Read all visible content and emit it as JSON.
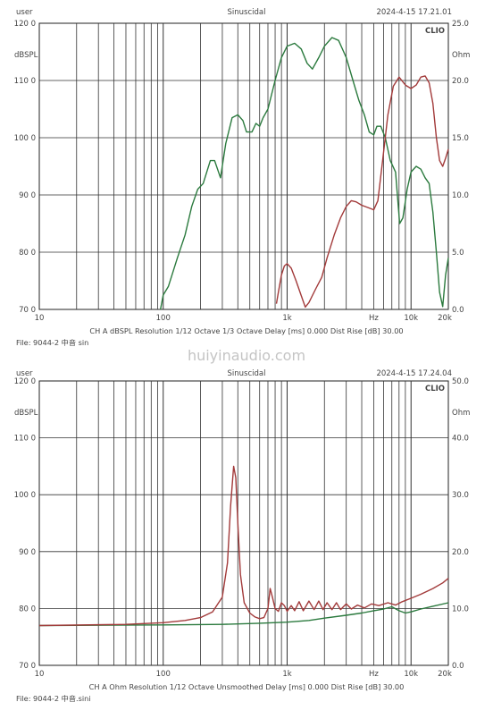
{
  "watermark": "huiyinaudio.com",
  "chart_data": [
    {
      "type": "line",
      "header": {
        "left": "user",
        "center": "Sinuscidal",
        "right": "2024-4-15 17.21.01"
      },
      "brand": "CLIO",
      "ylabel_left": "dBSPL",
      "ylabel_right": "Ohm",
      "xlim": [
        10,
        20000
      ],
      "ylim_left": [
        70,
        120
      ],
      "ylim_right": [
        0,
        25
      ],
      "x_scale": "log",
      "grid": true,
      "x_ticks": [
        {
          "value": 10,
          "label": "10"
        },
        {
          "value": 100,
          "label": "100"
        },
        {
          "value": 1000,
          "label": "1k"
        },
        {
          "value": 5000,
          "label": "Hz"
        },
        {
          "value": 10000,
          "label": "10k"
        },
        {
          "value": 20000,
          "label": "20k"
        }
      ],
      "y_ticks_left": [
        "70 0",
        "80 0",
        "90 0",
        "100 0",
        "110 0",
        "120 0"
      ],
      "y_ticks_right": [
        "0.0",
        "5.0",
        "10.0",
        "15.0",
        "20.0",
        "25.0"
      ],
      "info": "CH A   dBSPL   Resolution 1/12 Octave   1/3 Octave   Delay [ms] 0.000   Dist Rise [dB] 30.00",
      "file": "File: 9044-2  中音 sin",
      "series": [
        {
          "axis": "left",
          "color": "#2b7a3e",
          "points": [
            [
              95,
              70
            ],
            [
              100,
              72.5
            ],
            [
              110,
              74
            ],
            [
              130,
              79
            ],
            [
              150,
              83
            ],
            [
              170,
              88
            ],
            [
              190,
              91
            ],
            [
              210,
              92
            ],
            [
              240,
              96
            ],
            [
              260,
              96
            ],
            [
              290,
              93
            ],
            [
              320,
              99
            ],
            [
              360,
              103.5
            ],
            [
              400,
              104
            ],
            [
              440,
              103
            ],
            [
              470,
              101
            ],
            [
              520,
              101
            ],
            [
              560,
              102.5
            ],
            [
              600,
              102
            ],
            [
              640,
              103.5
            ],
            [
              700,
              105
            ],
            [
              800,
              110
            ],
            [
              900,
              114
            ],
            [
              1000,
              116
            ],
            [
              1150,
              116.5
            ],
            [
              1300,
              115.5
            ],
            [
              1450,
              113
            ],
            [
              1600,
              112
            ],
            [
              1800,
              114
            ],
            [
              2000,
              116
            ],
            [
              2300,
              117.5
            ],
            [
              2600,
              117
            ],
            [
              3000,
              114
            ],
            [
              3400,
              110
            ],
            [
              3800,
              106.5
            ],
            [
              4200,
              104
            ],
            [
              4600,
              101
            ],
            [
              5000,
              100.5
            ],
            [
              5300,
              102
            ],
            [
              5700,
              102
            ],
            [
              6200,
              100
            ],
            [
              6800,
              96
            ],
            [
              7500,
              94
            ],
            [
              8100,
              85
            ],
            [
              8600,
              86
            ],
            [
              9300,
              91
            ],
            [
              10000,
              94
            ],
            [
              11000,
              95
            ],
            [
              12000,
              94.5
            ],
            [
              13000,
              93
            ],
            [
              14000,
              92
            ],
            [
              15000,
              87
            ],
            [
              16000,
              80
            ],
            [
              17000,
              73
            ],
            [
              18000,
              70.5
            ],
            [
              19000,
              76
            ],
            [
              20000,
              79
            ]
          ]
        },
        {
          "axis": "right",
          "color": "#a23a3a",
          "points": [
            [
              820,
              0.5
            ],
            [
              850,
              1.5
            ],
            [
              900,
              3
            ],
            [
              950,
              3.8
            ],
            [
              1000,
              4.0
            ],
            [
              1080,
              3.6
            ],
            [
              1180,
              2.5
            ],
            [
              1300,
              1.2
            ],
            [
              1400,
              0.2
            ],
            [
              1500,
              0.6
            ],
            [
              1700,
              1.8
            ],
            [
              1900,
              2.8
            ],
            [
              2100,
              4.5
            ],
            [
              2400,
              6.5
            ],
            [
              2700,
              8.0
            ],
            [
              3000,
              9.0
            ],
            [
              3300,
              9.5
            ],
            [
              3600,
              9.4
            ],
            [
              4000,
              9.1
            ],
            [
              4500,
              8.9
            ],
            [
              5000,
              8.7
            ],
            [
              5400,
              9.5
            ],
            [
              5900,
              13
            ],
            [
              6500,
              17
            ],
            [
              7200,
              19.5
            ],
            [
              8000,
              20.3
            ],
            [
              9000,
              19.6
            ],
            [
              10000,
              19.3
            ],
            [
              11000,
              19.6
            ],
            [
              12000,
              20.3
            ],
            [
              13000,
              20.4
            ],
            [
              14000,
              19.8
            ],
            [
              15000,
              18
            ],
            [
              16000,
              15
            ],
            [
              17000,
              13
            ],
            [
              18000,
              12.5
            ],
            [
              19000,
              13.2
            ],
            [
              20000,
              14
            ]
          ]
        }
      ]
    },
    {
      "type": "line",
      "header": {
        "left": "user",
        "center": "Sinuscidal",
        "right": "2024-4-15 17.24.04"
      },
      "brand": "CLIO",
      "ylabel_left": "dBSPL",
      "ylabel_right": "Ohm",
      "xlim": [
        10,
        20000
      ],
      "ylim_left": [
        70,
        120
      ],
      "ylim_right": [
        0,
        50
      ],
      "x_scale": "log",
      "grid": true,
      "x_ticks": [
        {
          "value": 10,
          "label": "10"
        },
        {
          "value": 100,
          "label": "100"
        },
        {
          "value": 1000,
          "label": "1k"
        },
        {
          "value": 5000,
          "label": "Hz"
        },
        {
          "value": 10000,
          "label": "10k"
        },
        {
          "value": 20000,
          "label": "20k"
        }
      ],
      "y_ticks_left": [
        "70 0",
        "80 0",
        "90 0",
        "100 0",
        "110 0",
        "120 0"
      ],
      "y_ticks_right": [
        "0.0",
        "10.0",
        "20.0",
        "30.0",
        "40.0",
        "50.0"
      ],
      "info": "CH A   Ohm   Resolution 1/12 Octave   Unsmoothed   Delay [ms] 0.000   Dist Rise [dB] 30.00",
      "file": "File: 9044-2  中音.sini",
      "series": [
        {
          "axis": "right",
          "color": "#2b7a3e",
          "points": [
            [
              10,
              7.0
            ],
            [
              100,
              7.1
            ],
            [
              300,
              7.2
            ],
            [
              600,
              7.4
            ],
            [
              1000,
              7.6
            ],
            [
              1500,
              7.9
            ],
            [
              2000,
              8.3
            ],
            [
              3000,
              8.8
            ],
            [
              4000,
              9.2
            ],
            [
              5000,
              9.6
            ],
            [
              6000,
              9.9
            ],
            [
              7000,
              10.3
            ],
            [
              8000,
              9.6
            ],
            [
              9000,
              9.2
            ],
            [
              10000,
              9.4
            ],
            [
              12000,
              9.9
            ],
            [
              15000,
              10.4
            ],
            [
              20000,
              11.0
            ]
          ]
        },
        {
          "axis": "right",
          "color": "#a23a3a",
          "points": [
            [
              10,
              7.0
            ],
            [
              50,
              7.2
            ],
            [
              100,
              7.5
            ],
            [
              150,
              7.9
            ],
            [
              200,
              8.4
            ],
            [
              250,
              9.4
            ],
            [
              300,
              12
            ],
            [
              330,
              18
            ],
            [
              350,
              28
            ],
            [
              370,
              35
            ],
            [
              385,
              33
            ],
            [
              400,
              25
            ],
            [
              420,
              16
            ],
            [
              450,
              11
            ],
            [
              500,
              9.2
            ],
            [
              550,
              8.5
            ],
            [
              600,
              8.2
            ],
            [
              650,
              8.4
            ],
            [
              700,
              10
            ],
            [
              730,
              13.5
            ],
            [
              760,
              12
            ],
            [
              800,
              10
            ],
            [
              850,
              9.5
            ],
            [
              900,
              11
            ],
            [
              950,
              10.5
            ],
            [
              1000,
              9.5
            ],
            [
              1080,
              10.5
            ],
            [
              1150,
              9.6
            ],
            [
              1250,
              11.2
            ],
            [
              1350,
              9.6
            ],
            [
              1500,
              11.3
            ],
            [
              1650,
              9.8
            ],
            [
              1800,
              11.3
            ],
            [
              1950,
              9.8
            ],
            [
              2100,
              11
            ],
            [
              2300,
              9.8
            ],
            [
              2500,
              11
            ],
            [
              2700,
              9.8
            ],
            [
              3000,
              10.8
            ],
            [
              3300,
              9.9
            ],
            [
              3700,
              10.6
            ],
            [
              4200,
              10.1
            ],
            [
              4800,
              10.8
            ],
            [
              5500,
              10.5
            ],
            [
              6500,
              11
            ],
            [
              7500,
              10.6
            ],
            [
              8500,
              11.2
            ],
            [
              10000,
              11.8
            ],
            [
              12000,
              12.5
            ],
            [
              15000,
              13.5
            ],
            [
              18000,
              14.5
            ],
            [
              20000,
              15.3
            ]
          ]
        }
      ]
    }
  ]
}
